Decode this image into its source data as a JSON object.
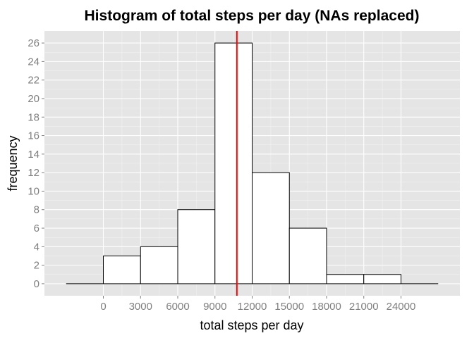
{
  "chart_data": {
    "type": "bar",
    "title": "Histogram of total steps per day (NAs replaced)",
    "xlabel": "total steps per day",
    "ylabel": "frequency",
    "bin_width": 3000,
    "bins": [
      {
        "start": -3000,
        "end": 0,
        "count": 0
      },
      {
        "start": 0,
        "end": 3000,
        "count": 3
      },
      {
        "start": 3000,
        "end": 6000,
        "count": 4
      },
      {
        "start": 6000,
        "end": 9000,
        "count": 8
      },
      {
        "start": 9000,
        "end": 12000,
        "count": 26
      },
      {
        "start": 12000,
        "end": 15000,
        "count": 12
      },
      {
        "start": 15000,
        "end": 18000,
        "count": 6
      },
      {
        "start": 18000,
        "end": 21000,
        "count": 1
      },
      {
        "start": 21000,
        "end": 24000,
        "count": 1
      },
      {
        "start": 24000,
        "end": 27000,
        "count": 0
      }
    ],
    "vline": {
      "x": 10766,
      "color": "#ff0000"
    },
    "x_ticks": [
      0,
      3000,
      6000,
      9000,
      12000,
      15000,
      18000,
      21000,
      24000
    ],
    "y_ticks": [
      0,
      2,
      4,
      6,
      8,
      10,
      12,
      14,
      16,
      18,
      20,
      22,
      24,
      26
    ],
    "xlim": [
      -4750,
      28750
    ],
    "ylim": [
      -1.3,
      27.3
    ],
    "grid": true,
    "colors": {
      "panel": "#e5e5e5",
      "grid_major": "#ffffff",
      "grid_minor": "#f2f2f2",
      "bar_fill": "#ffffff",
      "bar_stroke": "#000000"
    }
  }
}
